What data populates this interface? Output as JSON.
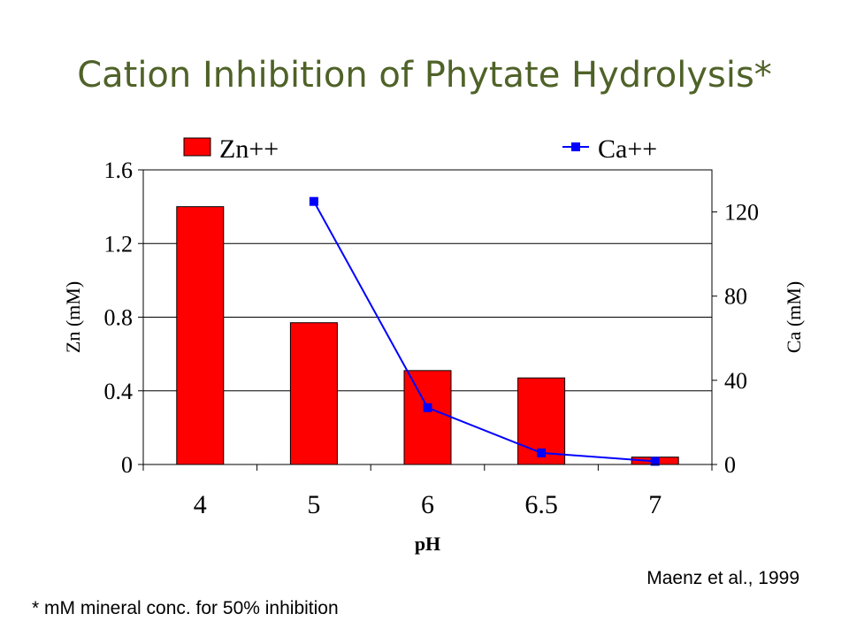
{
  "slide": {
    "title": "Cation Inhibition of Phytate Hydrolysis*",
    "citation": "Maenz et al., 1999",
    "footnote": "* mM mineral conc. for 50% inhibition"
  },
  "chart_data": {
    "type": "bar",
    "categories": [
      "4",
      "5",
      "6",
      "6.5",
      "7"
    ],
    "series": [
      {
        "name": "Zn++",
        "chart": "bar",
        "axis": "left",
        "color": "#ff0000",
        "values": [
          1.4,
          0.77,
          0.51,
          0.47,
          0.04
        ]
      },
      {
        "name": "Ca++",
        "chart": "line",
        "axis": "right",
        "color": "#0000ff",
        "values": [
          null,
          125,
          27,
          5.5,
          1.5
        ]
      }
    ],
    "xlabel": "pH",
    "ylabel": "Zn (mM)",
    "ylabel_right": "Ca (mM)",
    "ylim": [
      0,
      1.6
    ],
    "ylim_right": [
      0,
      140
    ],
    "yticks": [
      "0",
      "0.4",
      "0.8",
      "1.2",
      "1.6"
    ],
    "yticks_right": [
      "0",
      "40",
      "80",
      "120"
    ],
    "grid": true,
    "legend": "top"
  }
}
